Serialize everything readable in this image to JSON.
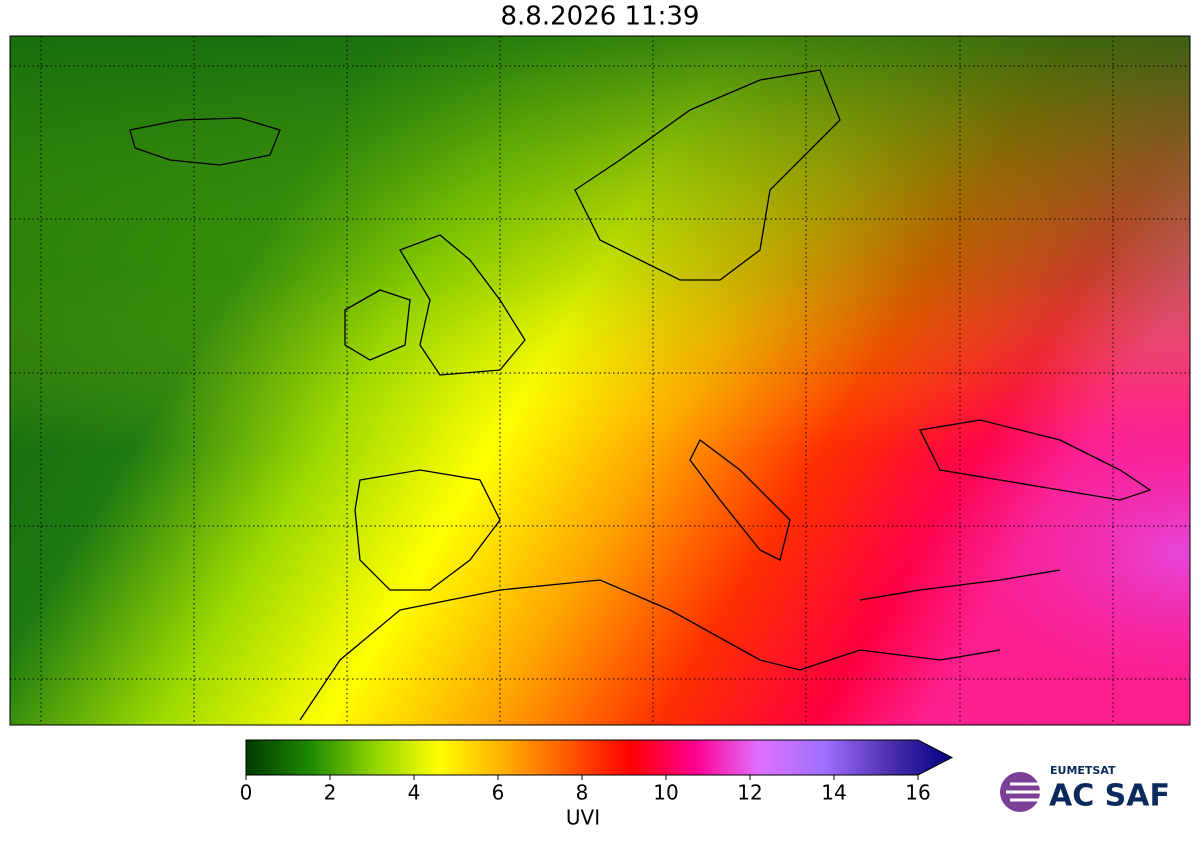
{
  "title": "8.8.2026 11:39",
  "colorbar": {
    "label": "UVI",
    "range": [
      0,
      16
    ],
    "ticks": [
      0,
      2,
      4,
      6,
      8,
      10,
      12,
      14,
      16
    ],
    "colors": [
      "#003a00",
      "#1f8a00",
      "#8fd400",
      "#ffff00",
      "#ffb000",
      "#ff5a00",
      "#ff0000",
      "#ff0090",
      "#e070ff",
      "#a070ff",
      "#5030b0",
      "#000080"
    ]
  },
  "logo": {
    "org": "EUMETSAT",
    "name": "AC SAF"
  }
}
